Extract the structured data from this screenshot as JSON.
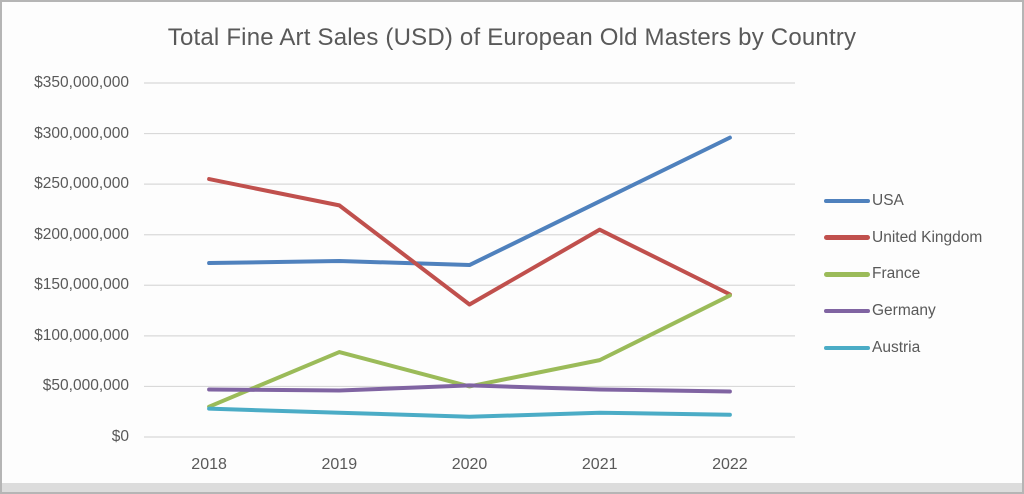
{
  "window": {
    "background": "#FDFDFD",
    "border_color": "#B5B5B5",
    "bottom_strip_color": "#DCDCDC"
  },
  "chart_data": {
    "type": "line",
    "title": "Total Fine Art Sales (USD) of European Old Masters by Country",
    "xlabel": "",
    "ylabel": "",
    "categories": [
      "2018",
      "2019",
      "2020",
      "2021",
      "2022"
    ],
    "series": [
      {
        "name": "USA",
        "color": "#4F81BD",
        "values": [
          172000000,
          174000000,
          170000000,
          233000000,
          296000000
        ]
      },
      {
        "name": "United Kingdom",
        "color": "#C0504D",
        "values": [
          255000000,
          229000000,
          131000000,
          205000000,
          141000000
        ]
      },
      {
        "name": "France",
        "color": "#9BBB59",
        "values": [
          30000000,
          84000000,
          50000000,
          76000000,
          140000000
        ]
      },
      {
        "name": "Germany",
        "color": "#8064A2",
        "values": [
          47000000,
          46000000,
          51000000,
          47000000,
          45000000
        ]
      },
      {
        "name": "Austria",
        "color": "#4BACC6",
        "values": [
          28000000,
          24000000,
          20000000,
          24000000,
          22000000
        ]
      }
    ],
    "ylim": [
      0,
      350000000
    ],
    "y_ticks": [
      0,
      50000000,
      100000000,
      150000000,
      200000000,
      250000000,
      300000000,
      350000000
    ],
    "y_tick_labels": [
      "$0",
      "$50,000,000",
      "$100,000,000",
      "$150,000,000",
      "$200,000,000",
      "$250,000,000",
      "$300,000,000",
      "$350,000,000"
    ],
    "grid": true,
    "legend_position": "right",
    "line_width": 4,
    "text_color": "#595959",
    "gridline_color": "#D9D9D9"
  }
}
